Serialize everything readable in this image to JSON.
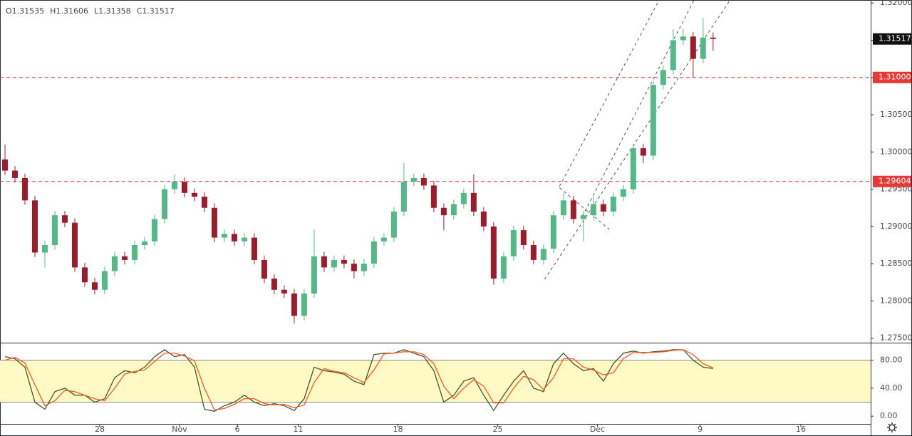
{
  "chart_data": [
    {
      "type": "candlestick",
      "ohlc": [
        {
          "key": "O",
          "value": 1.31535
        },
        {
          "key": "H",
          "value": 1.31606
        },
        {
          "key": "L",
          "value": 1.31358
        },
        {
          "key": "C",
          "value": 1.31517
        }
      ],
      "up_color": "#53b987",
      "down_color": "#9c1c2c",
      "open": [
        1.299,
        1.2975,
        1.2965,
        1.2935,
        1.2865,
        1.2875,
        1.2915,
        1.2905,
        1.2845,
        1.2825,
        1.2815,
        1.284,
        1.286,
        1.2855,
        1.2875,
        1.288,
        1.291,
        1.295,
        1.296,
        1.2945,
        1.294,
        1.2925,
        1.2885,
        1.289,
        1.288,
        1.2885,
        1.2855,
        1.283,
        1.2815,
        1.281,
        1.278,
        1.281,
        1.286,
        1.2845,
        1.2855,
        1.285,
        1.284,
        1.285,
        1.288,
        1.2885,
        1.292,
        1.296,
        1.2965,
        1.2955,
        1.2925,
        1.2915,
        1.293,
        1.2945,
        1.292,
        1.29,
        1.283,
        1.286,
        1.2895,
        1.2875,
        1.2855,
        1.287,
        1.2915,
        1.2935,
        1.291,
        1.2915,
        1.293,
        1.292,
        1.294,
        1.295,
        1.3005,
        1.2995,
        1.309,
        1.311,
        1.315,
        1.3155,
        1.3125,
        1.31535
      ],
      "high": [
        1.301,
        1.2981,
        1.2971,
        1.2941,
        1.2881,
        1.2921,
        1.2921,
        1.2911,
        1.2851,
        1.2831,
        1.2846,
        1.2866,
        1.2866,
        1.2881,
        1.2886,
        1.2916,
        1.2956,
        1.297,
        1.2966,
        1.2951,
        1.2946,
        1.2931,
        1.2896,
        1.2896,
        1.2891,
        1.2891,
        1.2861,
        1.2836,
        1.2821,
        1.2816,
        1.2816,
        1.2896,
        1.2866,
        1.2861,
        1.2861,
        1.2856,
        1.2856,
        1.2886,
        1.2891,
        1.2926,
        1.2985,
        1.2971,
        1.2971,
        1.2961,
        1.2931,
        1.2936,
        1.2951,
        1.297,
        1.2926,
        1.2906,
        1.2866,
        1.2901,
        1.2901,
        1.2881,
        1.2876,
        1.2921,
        1.2945,
        1.2941,
        1.2921,
        1.294,
        1.2936,
        1.2946,
        1.2956,
        1.3011,
        1.3011,
        1.3096,
        1.3116,
        1.3165,
        1.3165,
        1.3161,
        1.318,
        1.31606
      ],
      "low": [
        1.2969,
        1.2959,
        1.2929,
        1.2859,
        1.2845,
        1.2869,
        1.2899,
        1.2839,
        1.2819,
        1.2809,
        1.2809,
        1.2834,
        1.2849,
        1.2849,
        1.2869,
        1.2874,
        1.2904,
        1.2944,
        1.2939,
        1.2934,
        1.2919,
        1.2879,
        1.2879,
        1.2874,
        1.2874,
        1.2849,
        1.2824,
        1.2809,
        1.2804,
        1.277,
        1.2774,
        1.2804,
        1.2839,
        1.2839,
        1.2844,
        1.283,
        1.2834,
        1.2844,
        1.2874,
        1.2879,
        1.2914,
        1.2954,
        1.2949,
        1.2919,
        1.2895,
        1.2909,
        1.2924,
        1.2914,
        1.2894,
        1.2822,
        1.2824,
        1.2854,
        1.2869,
        1.2849,
        1.2849,
        1.2864,
        1.2909,
        1.2904,
        1.288,
        1.2909,
        1.2914,
        1.2914,
        1.2934,
        1.2944,
        1.2985,
        1.2989,
        1.3084,
        1.3104,
        1.3144,
        1.31,
        1.3119,
        1.31358
      ],
      "close": [
        1.2975,
        1.2965,
        1.2935,
        1.2865,
        1.2875,
        1.2915,
        1.2905,
        1.2845,
        1.2825,
        1.2815,
        1.284,
        1.286,
        1.2855,
        1.2875,
        1.288,
        1.291,
        1.295,
        1.296,
        1.2945,
        1.294,
        1.2925,
        1.2885,
        1.289,
        1.288,
        1.2885,
        1.2855,
        1.283,
        1.2815,
        1.281,
        1.278,
        1.281,
        1.286,
        1.2845,
        1.2855,
        1.285,
        1.284,
        1.285,
        1.288,
        1.2885,
        1.292,
        1.296,
        1.2965,
        1.2955,
        1.2925,
        1.2915,
        1.293,
        1.2945,
        1.292,
        1.29,
        1.283,
        1.286,
        1.2895,
        1.2875,
        1.2855,
        1.287,
        1.2915,
        1.2935,
        1.291,
        1.2915,
        1.293,
        1.292,
        1.294,
        1.295,
        1.3005,
        1.2995,
        1.309,
        1.311,
        1.315,
        1.3155,
        1.3125,
        1.31535,
        1.31517
      ],
      "last_price": 1.31517,
      "levels": [
        {
          "value": 1.31,
          "label": "1.31000",
          "color": "#e53935"
        },
        {
          "value": 1.29604,
          "label": "1.29604",
          "color": "#e53935"
        }
      ],
      "trendlines": [
        {
          "points": [
            [
              55.6,
              1.2954
            ],
            [
              65.6,
              1.3204
            ]
          ]
        },
        {
          "points": [
            [
              57.9,
              1.2914
            ],
            [
              69.1,
              1.3204
            ]
          ]
        },
        {
          "points": [
            [
              54.1,
              1.2829
            ],
            [
              72.7,
              1.3204
            ]
          ]
        },
        {
          "points": [
            [
              55.6,
              1.2952
            ],
            [
              60.6,
              1.2896
            ]
          ]
        }
      ],
      "xlim": [
        -0.5,
        86.8
      ],
      "ylim": [
        1.2744,
        1.3204
      ],
      "yticks": [
        {
          "value": 1.275,
          "label": "1.27500"
        },
        {
          "value": 1.28,
          "label": "1.28000"
        },
        {
          "value": 1.285,
          "label": "1.28500"
        },
        {
          "value": 1.29,
          "label": "1.29000"
        },
        {
          "value": 1.295,
          "label": "1.29500"
        },
        {
          "value": 1.3,
          "label": "1.30000"
        },
        {
          "value": 1.305,
          "label": "1.30500"
        },
        {
          "value": 1.31,
          "label": "1.31000"
        },
        {
          "value": 1.315,
          "label": "1.31500"
        },
        {
          "value": 1.32,
          "label": "1.32000"
        }
      ]
    },
    {
      "type": "line",
      "band": [
        20,
        80
      ],
      "band_color": "#fff9c4",
      "series": [
        {
          "color": "#3d5a2a",
          "values": [
            85,
            82,
            70,
            20,
            10,
            35,
            40,
            30,
            30,
            20,
            25,
            55,
            65,
            62,
            70,
            85,
            95,
            85,
            88,
            70,
            10,
            7,
            15,
            20,
            30,
            20,
            15,
            18,
            15,
            8,
            25,
            70,
            65,
            63,
            60,
            50,
            45,
            88,
            90,
            90,
            95,
            90,
            85,
            65,
            20,
            30,
            50,
            55,
            30,
            8,
            30,
            50,
            65,
            40,
            35,
            75,
            90,
            75,
            65,
            68,
            50,
            75,
            90,
            93,
            90,
            92,
            93,
            95,
            95,
            80,
            70,
            68
          ]
        },
        {
          "color": "#ff5722",
          "values": [
            80,
            84,
            76,
            45,
            15,
            22,
            37,
            35,
            30,
            25,
            22,
            40,
            60,
            64,
            66,
            78,
            90,
            90,
            86,
            79,
            40,
            9,
            11,
            17,
            25,
            25,
            18,
            16,
            17,
            12,
            16,
            48,
            68,
            64,
            62,
            55,
            48,
            66,
            89,
            90,
            92,
            92,
            88,
            75,
            43,
            25,
            40,
            52,
            43,
            19,
            19,
            40,
            57,
            52,
            38,
            55,
            82,
            82,
            70,
            66,
            59,
            62,
            82,
            91,
            91,
            91,
            92,
            94,
            95,
            88,
            75,
            69
          ]
        }
      ],
      "xlim": [
        -0.5,
        86.8
      ],
      "ylim": [
        -11,
        104
      ],
      "yticks": [
        {
          "value": 0,
          "label": "0.00"
        },
        {
          "value": 40,
          "label": "40.00"
        },
        {
          "value": 80,
          "label": "80.00"
        }
      ],
      "xticks": [
        {
          "value": 9.5,
          "label": "28"
        },
        {
          "value": 17.5,
          "label": "Nov"
        },
        {
          "value": 23.3,
          "label": "6"
        },
        {
          "value": 29.4,
          "label": "11"
        },
        {
          "value": 39.4,
          "label": "18"
        },
        {
          "value": 49.4,
          "label": "25"
        },
        {
          "value": 59.4,
          "label": "Dec"
        },
        {
          "value": 69.7,
          "label": "9"
        },
        {
          "value": 79.8,
          "label": "16"
        }
      ]
    }
  ]
}
